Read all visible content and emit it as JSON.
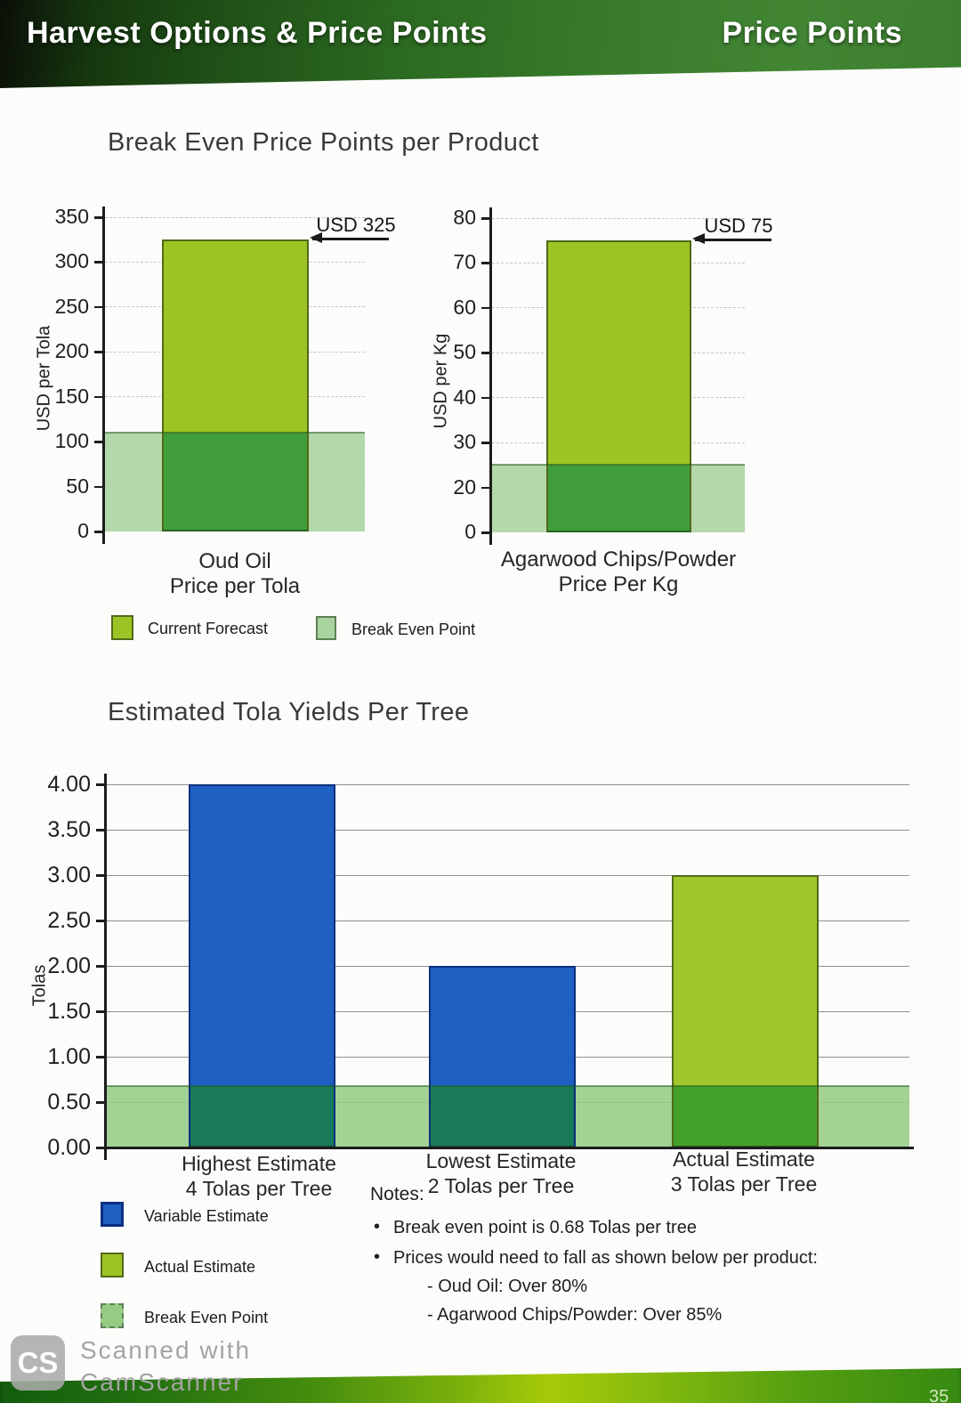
{
  "colors": {
    "header_green": "#2c6a22",
    "current_forecast_green": "#9cc424",
    "break_even_light_green": "#a9d39e",
    "variable_blue": "#1e5fc2",
    "overlap_dark_green": "#3f9e3a",
    "overlap_teal": "#187a58",
    "footer_yellow_green": "#a6ca08"
  },
  "header": {
    "title_left": "Harvest Options & Price Points",
    "title_right": "Price Points"
  },
  "section1": {
    "title": "Break Even Price Points per Product"
  },
  "section2": {
    "title": "Estimated Tola Yields Per Tree"
  },
  "chart_data": [
    {
      "type": "bar",
      "title": "Break Even Price Points per Product",
      "name": "oud-oil-price",
      "ylabel": "USD per Tola",
      "yticks": [
        350,
        300,
        250,
        200,
        150,
        100,
        50,
        0
      ],
      "ylim": [
        0,
        350
      ],
      "category": [
        "Oud Oil",
        "Price per Tola"
      ],
      "series": [
        {
          "name": "Current Forecast",
          "values": [
            325
          ]
        },
        {
          "name": "Break Even Point",
          "values": [
            110
          ]
        }
      ],
      "value": 325,
      "break_even": 110,
      "annotation": "USD 325",
      "bar_color": "#9cc424",
      "bar_border": "#53691a",
      "band_color": "#a9d39e",
      "overlap_color": "#3f9e3a",
      "grid": "dashed"
    },
    {
      "type": "bar",
      "title": "Break Even Price Points per Product",
      "name": "agarwood-price",
      "ylabel": "USD per Kg",
      "yticks": [
        80,
        70,
        60,
        50,
        40,
        30,
        20,
        0
      ],
      "ylim": [
        0,
        80
      ],
      "category": [
        "Agarwood Chips/Powder",
        "Price Per Kg"
      ],
      "series": [
        {
          "name": "Current Forecast",
          "values": [
            75
          ]
        },
        {
          "name": "Break Even Point",
          "values": [
            25
          ]
        }
      ],
      "value": 75,
      "break_even": 25,
      "annotation": "USD 75",
      "bar_color": "#9cc424",
      "bar_border": "#53691a",
      "band_color": "#a9d39e",
      "overlap_color": "#3f9e3a",
      "grid": "dashed"
    },
    {
      "type": "bar",
      "title": "Estimated Tola Yields Per Tree",
      "name": "tola-yields",
      "ylabel": "Tolas",
      "yticks": [
        "4.00",
        "3.50",
        "3.00",
        "2.50",
        "2.00",
        "1.50",
        "1.00",
        "0.50",
        "0.00"
      ],
      "ylim": [
        0,
        4
      ],
      "categories": [
        [
          "Highest Estimate",
          "4 Tolas per Tree"
        ],
        [
          "Lowest Estimate",
          "2 Tolas per Tree"
        ],
        [
          "Actual Estimate",
          "3 Tolas per Tree"
        ]
      ],
      "values": [
        4,
        2,
        3
      ],
      "series_names": [
        "Variable Estimate",
        "Variable Estimate",
        "Actual Estimate"
      ],
      "break_even": 0.68,
      "bar_colors": [
        "#1e5fc2",
        "#1e5fc2",
        "#9fc72b"
      ],
      "bar_borders": [
        "#0c2f7e",
        "#0c2f7e",
        "#53691a"
      ],
      "overlap_colors": [
        "#187a58",
        "#187a58",
        "#43a12c"
      ],
      "band_color": "#95cc85",
      "grid": "solid"
    }
  ],
  "legend1": {
    "items": [
      {
        "label": "Current Forecast",
        "color": "#9cc424",
        "border": "#53691a"
      },
      {
        "label": "Break Even Point",
        "color": "#a9d39e",
        "border": "#5f7f58"
      }
    ]
  },
  "legend2": {
    "items": [
      {
        "label": "Variable Estimate",
        "color": "#1e5fc2",
        "border": "#0c2f7e"
      },
      {
        "label": "Actual Estimate",
        "color": "#9cc424",
        "border": "#53691a"
      },
      {
        "label": "Break Even Point",
        "color": "#95cc85",
        "border": "#5f7f58"
      }
    ]
  },
  "notes": {
    "heading": "Notes:",
    "bullets": [
      "Break even point is 0.68 Tolas per tree",
      "Prices would need to fall as shown below per product:"
    ],
    "sub_bullets": [
      "- Oud Oil: Over 80%",
      "- Agarwood Chips/Powder: Over 85%"
    ]
  },
  "watermark": {
    "logo": "CS",
    "line1": "Scanned with",
    "line2": "CamScanner"
  },
  "footer": {
    "page_number": "35"
  }
}
